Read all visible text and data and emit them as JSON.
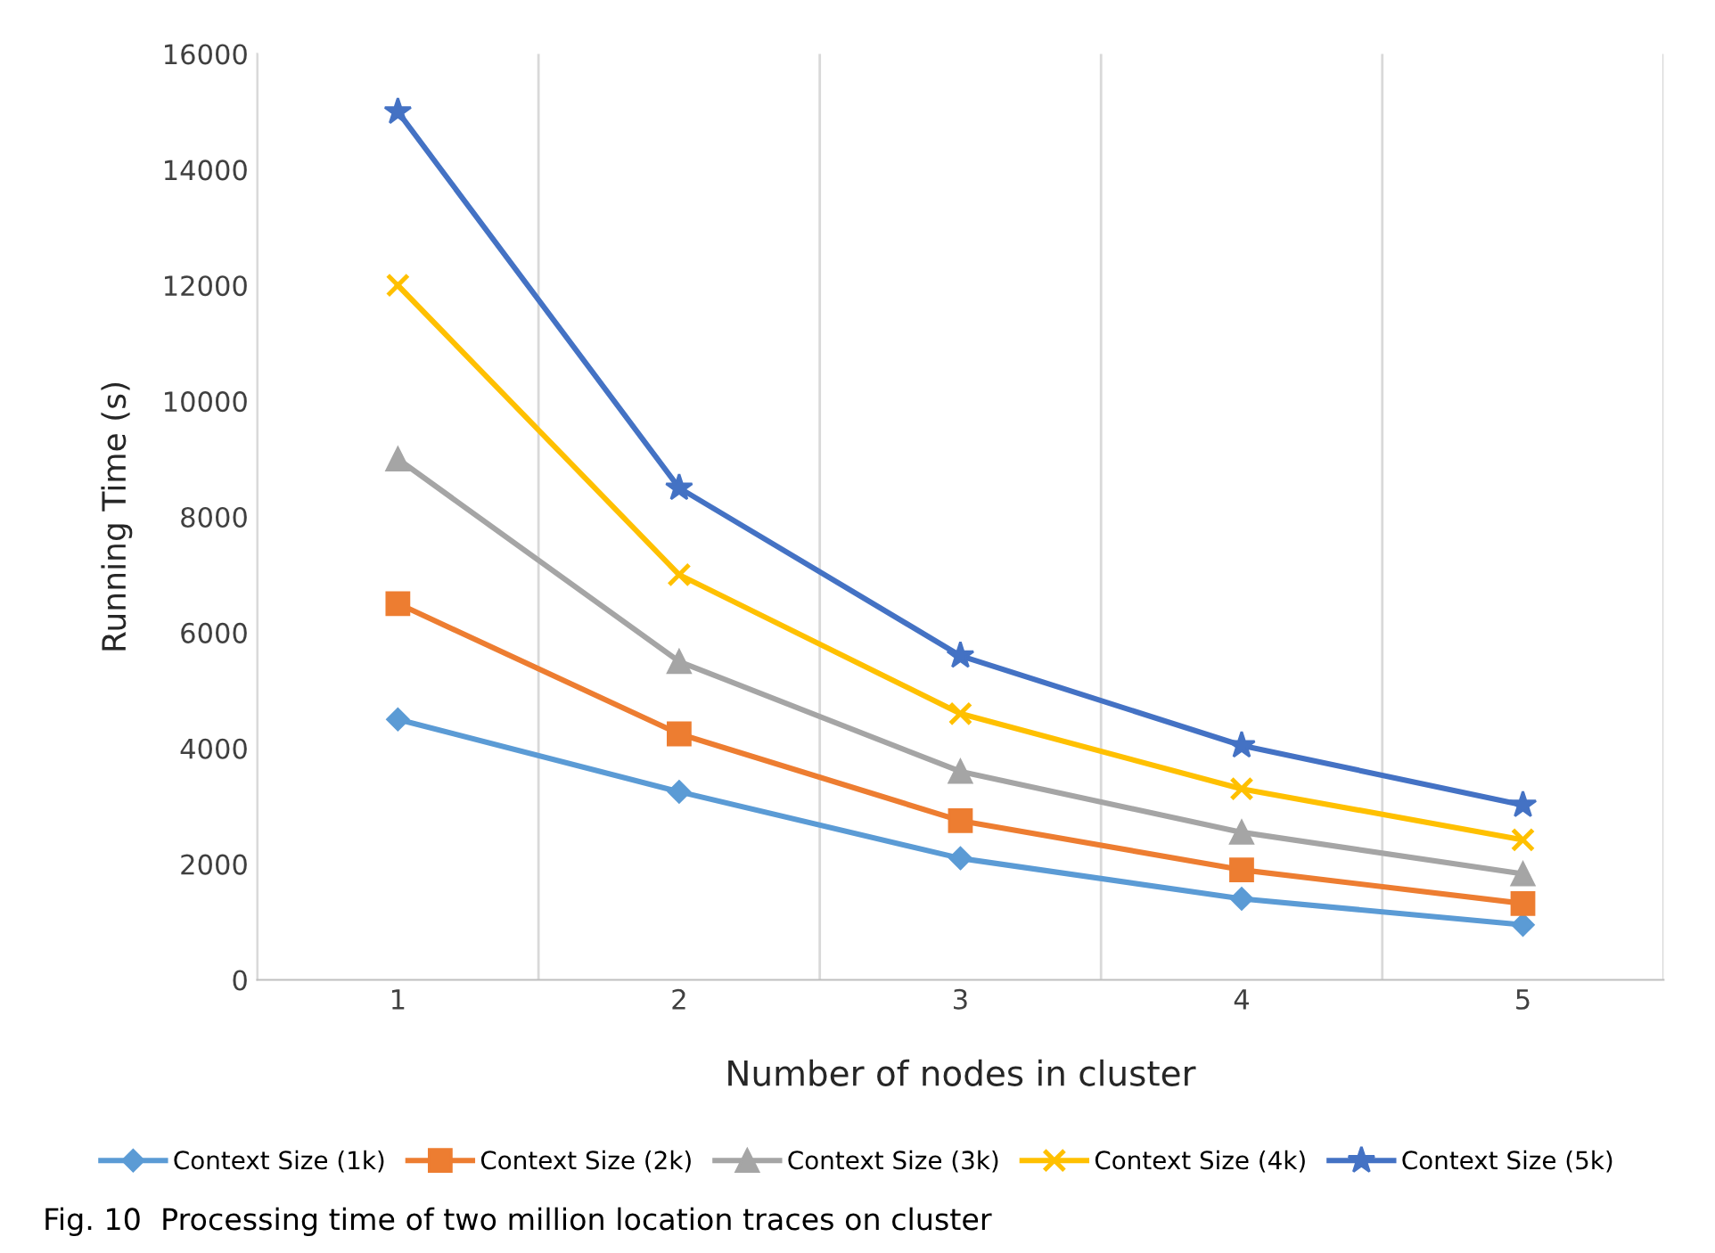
{
  "chart_data": {
    "type": "line",
    "xlabel": "Number of nodes in cluster",
    "ylabel": "Running Time (s)",
    "categories": [
      "1",
      "2",
      "3",
      "4",
      "5"
    ],
    "series": [
      {
        "name": "Context Size (1k)",
        "color": "#5b9bd5",
        "marker": "diamond",
        "values": [
          4500,
          3250,
          2100,
          1400,
          950
        ]
      },
      {
        "name": "Context Size (2k)",
        "color": "#ed7d31",
        "marker": "square",
        "values": [
          6500,
          4250,
          2750,
          1900,
          1320
        ]
      },
      {
        "name": "Context Size (3k)",
        "color": "#a5a5a5",
        "marker": "triangle",
        "values": [
          9000,
          5500,
          3600,
          2550,
          1830
        ]
      },
      {
        "name": "Context Size (4k)",
        "color": "#ffc000",
        "marker": "cross",
        "values": [
          12000,
          7000,
          4600,
          3300,
          2420
        ]
      },
      {
        "name": "Context Size (5k)",
        "color": "#4472c4",
        "marker": "star",
        "values": [
          15000,
          8500,
          5600,
          4050,
          3020
        ]
      }
    ],
    "ylim": [
      0,
      16000
    ],
    "yticks": [
      0,
      2000,
      4000,
      6000,
      8000,
      10000,
      12000,
      14000,
      16000
    ],
    "grid": "x",
    "legend": "bottom",
    "annotations": [
      "Fig. 10  Processing time of two million location traces on cluster"
    ]
  }
}
